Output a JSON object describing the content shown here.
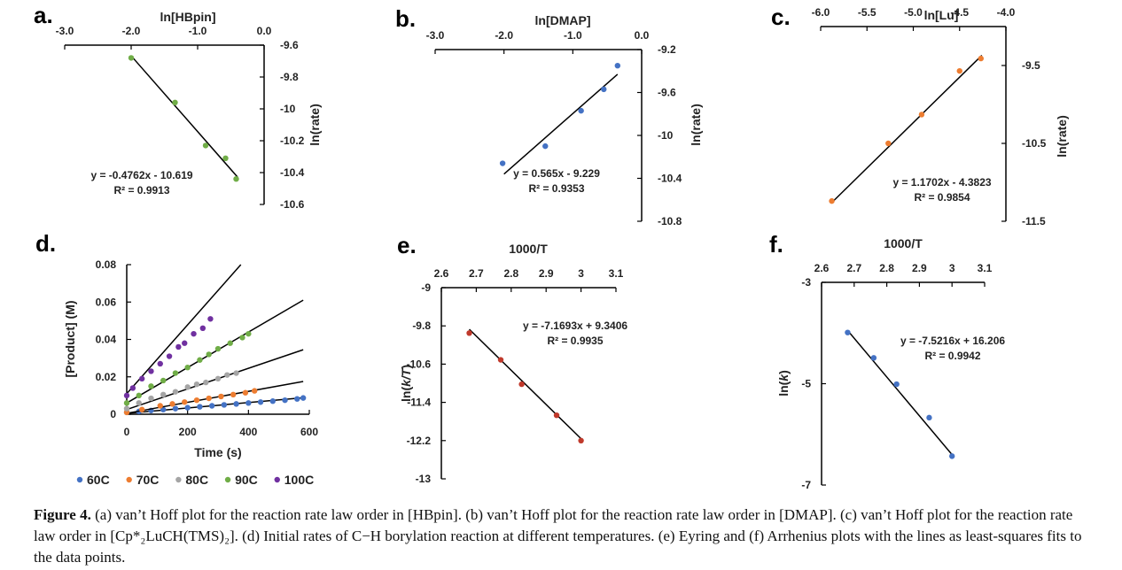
{
  "caption": {
    "label": "Figure 4.",
    "text": " (a) van’t Hoff plot for the reaction rate law order in [HBpin]. (b) van’t Hoff plot for the reaction rate law order in [DMAP]. (c) van’t Hoff plot for the reaction rate law order in [Cp*₂LuCH(TMS)₂]. (d) Initial rates of C−H borylation reaction at different temperatures. (e) Eyring and (f) Arrhenius plots with the lines as least-squares fits to the data points."
  },
  "chart_data": [
    {
      "panel": "a.",
      "type": "scatter",
      "xlabel": "ln[HBpin]",
      "ylabel": "ln(rate)",
      "xlim": [
        -3.0,
        0.0
      ],
      "ylim": [
        -10.6,
        -9.6
      ],
      "xticks": [
        "-3.0",
        "-2.0",
        "-1.0",
        "0.0"
      ],
      "yticks": [
        "-9.6",
        "-9.8",
        "-10",
        "-10.2",
        "-10.4",
        "-10.6"
      ],
      "x_axis_position": "top",
      "y_axis_position": "right",
      "color": "#70ad47",
      "points": [
        [
          -2.0,
          -9.68
        ],
        [
          -1.34,
          -9.96
        ],
        [
          -0.88,
          -10.23
        ],
        [
          -0.58,
          -10.31
        ],
        [
          -0.42,
          -10.44
        ]
      ],
      "fit": [
        [
          -2.0,
          -9.667
        ],
        [
          -0.4,
          -10.428
        ]
      ],
      "equation": "y = -0.4762x - 10.619",
      "r2": "R² = 0.9913"
    },
    {
      "panel": "b.",
      "type": "scatter",
      "xlabel": "ln[DMAP]",
      "ylabel": "ln(rate)",
      "xlim": [
        -3.0,
        0.0
      ],
      "ylim": [
        -10.8,
        -9.2
      ],
      "xticks": [
        "-3.0",
        "-2.0",
        "-1.0",
        "0.0"
      ],
      "yticks": [
        "-9.2",
        "-9.6",
        "-10",
        "-10.4",
        "-10.8"
      ],
      "x_axis_position": "top",
      "y_axis_position": "right",
      "color": "#4472c4",
      "points": [
        [
          -2.02,
          -10.26
        ],
        [
          -1.4,
          -10.1
        ],
        [
          -0.88,
          -9.77
        ],
        [
          -0.55,
          -9.57
        ],
        [
          -0.35,
          -9.35
        ]
      ],
      "fit": [
        [
          -2.0,
          -10.36
        ],
        [
          -0.35,
          -9.43
        ]
      ],
      "equation": "y = 0.565x - 9.229",
      "r2": "R² = 0.9353"
    },
    {
      "panel": "c.",
      "type": "scatter",
      "xlabel": "ln[Lu]",
      "ylabel": "ln(rate)",
      "xlim": [
        -6.0,
        -4.0
      ],
      "ylim": [
        -11.5,
        -9.0
      ],
      "xticks": [
        "-6.0",
        "-5.5",
        "-5.0",
        "-4.5",
        "-4.0"
      ],
      "yticks": [
        "-9.5",
        "-10.5",
        "-11.5"
      ],
      "x_axis_position": "top",
      "y_axis_position": "right",
      "color": "#ed7d31",
      "points": [
        [
          -5.88,
          -11.24
        ],
        [
          -5.27,
          -10.5
        ],
        [
          -4.91,
          -10.13
        ],
        [
          -4.5,
          -9.57
        ],
        [
          -4.27,
          -9.41
        ]
      ],
      "fit": [
        [
          -5.88,
          -11.26
        ],
        [
          -4.26,
          -9.37
        ]
      ],
      "equation": "y = 1.1702x - 4.3823",
      "r2": "R² = 0.9854"
    },
    {
      "panel": "d.",
      "type": "scatter",
      "xlabel": "Time (s)",
      "ylabel": "[Product] (M)",
      "xlim": [
        0,
        600
      ],
      "ylim": [
        0,
        0.08
      ],
      "xticks": [
        "0",
        "200",
        "400",
        "600"
      ],
      "yticks": [
        "0",
        "0.02",
        "0.04",
        "0.06",
        "0.08"
      ],
      "x_axis_position": "bottom",
      "y_axis_position": "left",
      "legend_position": "bottom",
      "series": [
        {
          "name": "60C",
          "color": "#4472c4",
          "points": [
            [
              0,
              0.001
            ],
            [
              40,
              0.0015
            ],
            [
              80,
              0.002
            ],
            [
              120,
              0.0025
            ],
            [
              160,
              0.003
            ],
            [
              200,
              0.0035
            ],
            [
              240,
              0.004
            ],
            [
              280,
              0.0045
            ],
            [
              320,
              0.005
            ],
            [
              360,
              0.0055
            ],
            [
              400,
              0.006
            ],
            [
              440,
              0.0065
            ],
            [
              480,
              0.007
            ],
            [
              520,
              0.0075
            ],
            [
              560,
              0.0082
            ],
            [
              580,
              0.0087
            ]
          ],
          "fit": [
            [
              0,
              0.0005
            ],
            [
              580,
              0.0088
            ]
          ]
        },
        {
          "name": "70C",
          "color": "#ed7d31",
          "points": [
            [
              0,
              0.001
            ],
            [
              50,
              0.0025
            ],
            [
              110,
              0.0045
            ],
            [
              150,
              0.0055
            ],
            [
              190,
              0.0065
            ],
            [
              230,
              0.0075
            ],
            [
              270,
              0.0085
            ],
            [
              310,
              0.0095
            ],
            [
              350,
              0.0105
            ],
            [
              390,
              0.0115
            ],
            [
              420,
              0.0125
            ]
          ],
          "fit": [
            [
              0,
              0.0005
            ],
            [
              580,
              0.0175
            ]
          ]
        },
        {
          "name": "80C",
          "color": "#a5a5a5",
          "points": [
            [
              0,
              0.003
            ],
            [
              40,
              0.006
            ],
            [
              80,
              0.0085
            ],
            [
              120,
              0.0105
            ],
            [
              160,
              0.012
            ],
            [
              200,
              0.0145
            ],
            [
              230,
              0.016
            ],
            [
              260,
              0.017
            ],
            [
              300,
              0.019
            ],
            [
              330,
              0.021
            ],
            [
              360,
              0.022
            ]
          ],
          "fit": [
            [
              0,
              0.0025
            ],
            [
              580,
              0.0345
            ]
          ]
        },
        {
          "name": "90C",
          "color": "#70ad47",
          "points": [
            [
              0,
              0.006
            ],
            [
              40,
              0.01
            ],
            [
              80,
              0.015
            ],
            [
              120,
              0.018
            ],
            [
              160,
              0.022
            ],
            [
              200,
              0.025
            ],
            [
              240,
              0.029
            ],
            [
              270,
              0.032
            ],
            [
              300,
              0.035
            ],
            [
              340,
              0.038
            ],
            [
              380,
              0.041
            ],
            [
              400,
              0.043
            ]
          ],
          "fit": [
            [
              0,
              0.006
            ],
            [
              580,
              0.061
            ]
          ]
        },
        {
          "name": "100C",
          "color": "#7030a0",
          "points": [
            [
              0,
              0.01
            ],
            [
              20,
              0.014
            ],
            [
              50,
              0.019
            ],
            [
              80,
              0.023
            ],
            [
              110,
              0.027
            ],
            [
              140,
              0.031
            ],
            [
              170,
              0.036
            ],
            [
              190,
              0.038
            ],
            [
              220,
              0.043
            ],
            [
              250,
              0.046
            ],
            [
              275,
              0.051
            ]
          ],
          "fit": [
            [
              0,
              0.011
            ],
            [
              375,
              0.08
            ]
          ]
        }
      ]
    },
    {
      "panel": "e.",
      "type": "scatter",
      "xlabel": "1000/T",
      "ylabel_pre": "ln(",
      "ylabel_italic": "k/T",
      "ylabel_post": ")",
      "xlim": [
        2.6,
        3.1
      ],
      "ylim": [
        -13,
        -9
      ],
      "xticks": [
        "2.6",
        "2.7",
        "2.8",
        "2.9",
        "3",
        "3.1"
      ],
      "yticks": [
        "-9",
        "-9.8",
        "-10.6",
        "-11.4",
        "-12.2",
        "-13"
      ],
      "x_axis_position": "top",
      "y_axis_position": "left",
      "color": "#c0392b",
      "points": [
        [
          2.68,
          -9.95
        ],
        [
          2.77,
          -10.51
        ],
        [
          2.83,
          -11.02
        ],
        [
          2.93,
          -11.67
        ],
        [
          3.0,
          -12.2
        ]
      ],
      "fit": [
        [
          2.68,
          -9.87
        ],
        [
          3.0,
          -12.16
        ]
      ],
      "equation": "y = -7.1693x + 9.3406",
      "r2": "R² = 0.9935"
    },
    {
      "panel": "f.",
      "type": "scatter",
      "xlabel": "1000/T",
      "ylabel_pre": "ln(",
      "ylabel_italic": "k",
      "ylabel_post": ")",
      "xlim": [
        2.6,
        3.1
      ],
      "ylim": [
        -7,
        -3
      ],
      "xticks": [
        "2.6",
        "2.7",
        "2.8",
        "2.9",
        "3",
        "3.1"
      ],
      "yticks": [
        "-3",
        "-5",
        "-7"
      ],
      "x_axis_position": "top",
      "y_axis_position": "left",
      "color": "#4472c4",
      "points": [
        [
          2.68,
          -3.99
        ],
        [
          2.76,
          -4.49
        ],
        [
          2.83,
          -5.01
        ],
        [
          2.93,
          -5.67
        ],
        [
          3.0,
          -6.43
        ]
      ],
      "fit": [
        [
          2.68,
          -3.95
        ],
        [
          3.0,
          -6.4
        ]
      ],
      "equation": "y = -7.5216x + 16.206",
      "r2": "R² = 0.9942"
    }
  ]
}
